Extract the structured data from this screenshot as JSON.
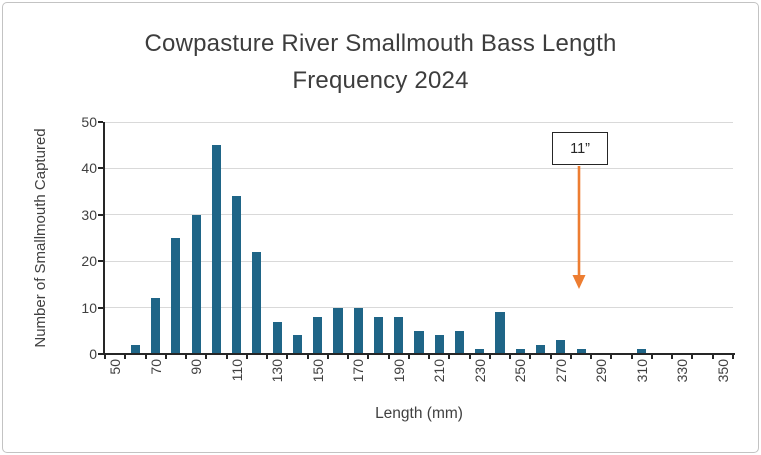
{
  "title_lines": [
    "Cowpasture River Smallmouth Bass Length",
    "Frequency 2024"
  ],
  "chart_data": {
    "type": "bar",
    "title": "Cowpasture River Smallmouth Bass Length Frequency 2024",
    "xlabel": "Length (mm)",
    "ylabel": "Number of Smallmouth Captured",
    "categories": [
      50,
      60,
      70,
      80,
      90,
      100,
      110,
      120,
      130,
      140,
      150,
      160,
      170,
      180,
      190,
      200,
      210,
      220,
      230,
      240,
      250,
      260,
      270,
      280,
      290,
      300,
      310,
      320,
      330,
      340,
      350
    ],
    "values": [
      0,
      2,
      12,
      25,
      30,
      45,
      34,
      22,
      7,
      4,
      8,
      10,
      10,
      8,
      8,
      5,
      4,
      5,
      1,
      9,
      1,
      2,
      3,
      1,
      0,
      0,
      1,
      0,
      0,
      0,
      0
    ],
    "ylim": [
      0,
      50
    ],
    "ytick_interval": 10,
    "xtick_label_interval": 2,
    "grid": "horizontal",
    "legend": "none",
    "bar_color": "#1F6587",
    "gridline_color": "#D9D9D9",
    "axis_color": "#262626",
    "text_color": "#404040",
    "annotation": {
      "label": "11”",
      "points_to_mm": 279,
      "arrow_color": "#ED7D31"
    }
  }
}
